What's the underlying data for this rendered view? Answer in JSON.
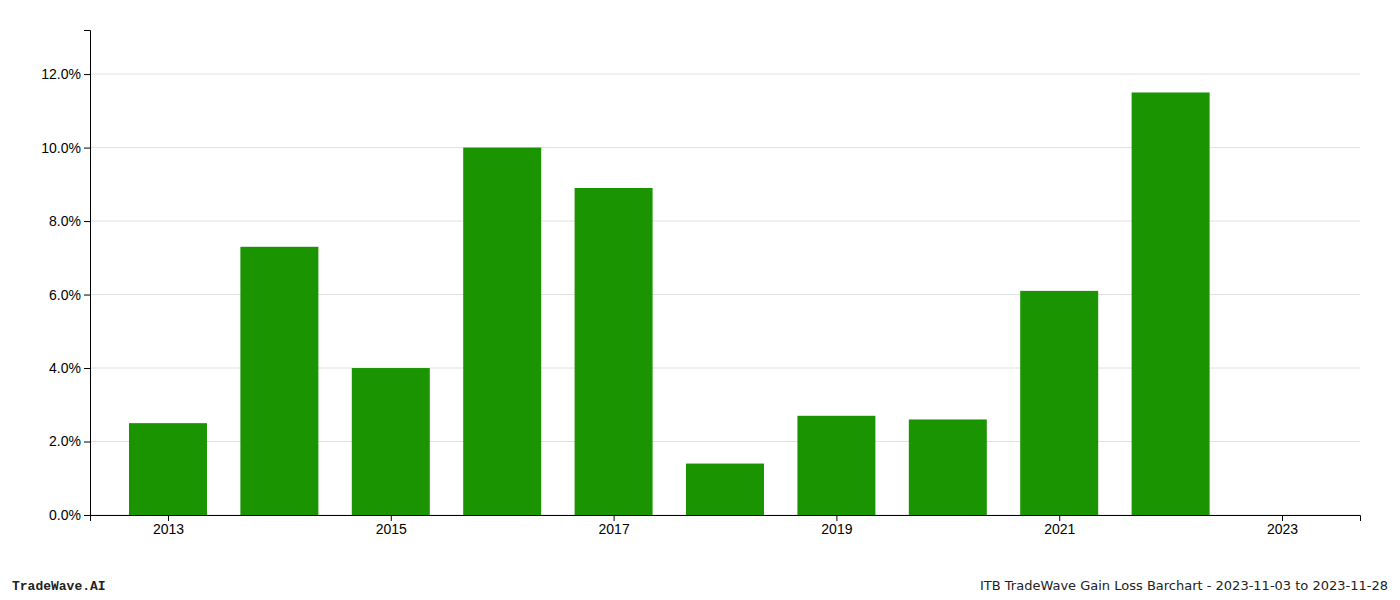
{
  "chart_data": {
    "type": "bar",
    "x": [
      2013,
      2014,
      2015,
      2016,
      2017,
      2018,
      2019,
      2020,
      2021,
      2022,
      2023
    ],
    "values": [
      0.025,
      0.073,
      0.04,
      0.1,
      0.089,
      0.014,
      0.027,
      0.026,
      0.061,
      0.115,
      null
    ],
    "color": "#1a9400",
    "xlim": [
      2012.3,
      2023.7
    ],
    "ylim": [
      0.0,
      0.132
    ],
    "xticks": [
      2013,
      2015,
      2017,
      2019,
      2021,
      2023
    ],
    "yticks": [
      {
        "value": 0.0,
        "label": "0.0%"
      },
      {
        "value": 0.02,
        "label": "2.0%"
      },
      {
        "value": 0.04,
        "label": "4.0%"
      },
      {
        "value": 0.06,
        "label": "6.0%"
      },
      {
        "value": 0.08,
        "label": "8.0%"
      },
      {
        "value": 0.1,
        "label": "10.0%"
      },
      {
        "value": 0.12,
        "label": "12.0%"
      }
    ],
    "grid": true,
    "annotations": [
      "TradeWave.AI",
      "ITB TradeWave Gain Loss Barchart - 2023-11-03 to 2023-11-28"
    ]
  }
}
